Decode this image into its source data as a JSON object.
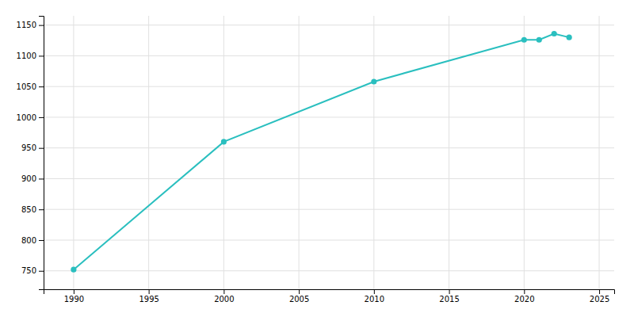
{
  "chart_data": {
    "type": "line",
    "x": [
      1990,
      2000,
      2010,
      2020,
      2021,
      2022,
      2023
    ],
    "values": [
      752,
      960,
      1058,
      1126,
      1126,
      1136,
      1130
    ],
    "color": "#2abfbf",
    "marker": "circle",
    "xlim": [
      1988,
      2026
    ],
    "ylim": [
      720,
      1165
    ],
    "xticks": [
      1990,
      1995,
      2000,
      2005,
      2010,
      2015,
      2020,
      2025
    ],
    "yticks": [
      750,
      800,
      850,
      900,
      950,
      1000,
      1050,
      1100,
      1150
    ],
    "grid": true
  }
}
